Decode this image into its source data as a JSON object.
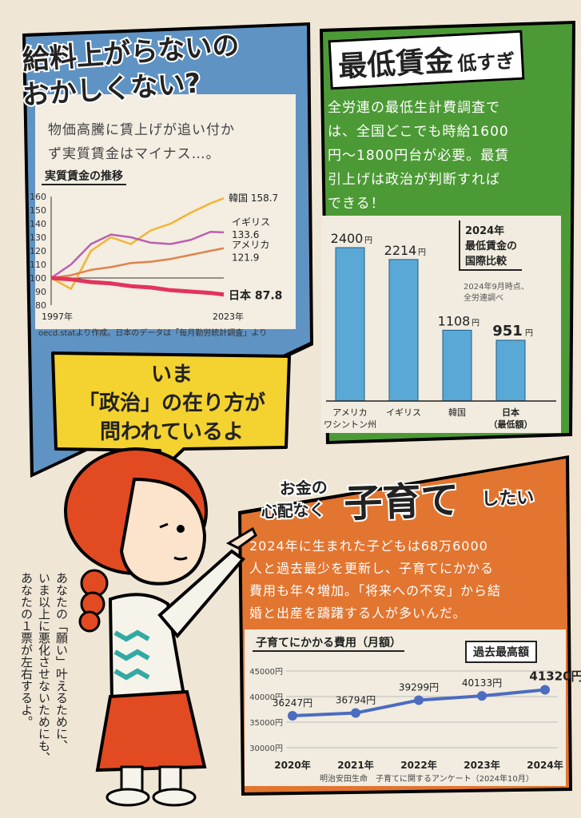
{
  "colors": {
    "blue_panel": "#5f93c4",
    "green_panel": "#4c9a35",
    "orange_panel": "#e27530",
    "yellow_bubble": "#f4d22f",
    "line_korea": "#f2b531",
    "line_uk": "#bb5fb1",
    "line_usa": "#e0824b",
    "line_japan": "#e3335c",
    "bar": "#5aa8d6",
    "cost_line": "#4c6cc0"
  },
  "panel1": {
    "title_line1": "給料上がらないの",
    "title_line2": "おかしくない?",
    "body_line1": "物価高騰に賃上げが追い付か",
    "body_line2": "ず実質賃金はマイナス…。",
    "chart_label": "実質賃金の推移",
    "source": "oecd.statより作成。日本のデータは「毎月勤労統計調査」より"
  },
  "panel2": {
    "title_big": "最低賃金",
    "title_small": "低すぎ",
    "body_line1": "全労連の最低生計費調査で",
    "body_line2": "は、全国どこでも時給1600",
    "body_line3": "円〜1800円台が必要。最賃",
    "body_line4": "引上げは政治が判断すれば",
    "body_line5": "できる！",
    "chart_title_line1": "2024年",
    "chart_title_line2": "最低賃金の",
    "chart_title_line3": "国際比較",
    "chart_note_line1": "2024年9月時点、",
    "chart_note_line2": "全労連調べ"
  },
  "bubble": {
    "line1": "いま",
    "line2": "「政治」の在り方が",
    "line3": "問われているよ"
  },
  "vertical_text": {
    "line1": "あなたの「願い」叶えるために、",
    "line2": "いま以上に悪化させないためにも、",
    "line3": "あなたの１票が左右するよ。"
  },
  "panel3": {
    "title_pre1": "お金の",
    "title_pre2": "心配なく",
    "title_big": "子育て",
    "title_post": "したい",
    "body_line1": "2024年に生まれた子どもは68万6000",
    "body_line2": "人と過去最少を更新し、子育てにかかる",
    "body_line3": "費用も年々増加。「将来への不安」から結",
    "body_line4": "婚と出産を躊躇する人が多いんだ。",
    "chart_label": "子育てにかかる費用（月額）",
    "callout": "過去最高額",
    "source": "明治安田生命　子育てに関するアンケート（2024年10月）"
  },
  "chart_data": [
    {
      "type": "line",
      "title": "実質賃金の推移",
      "x": [
        1997,
        2000,
        2003,
        2006,
        2009,
        2012,
        2015,
        2018,
        2021,
        2023
      ],
      "xlabels": [
        "1997年",
        "2023年"
      ],
      "yticks": [
        80,
        90,
        100,
        110,
        120,
        130,
        140,
        150,
        160
      ],
      "ylim": [
        80,
        160
      ],
      "series": [
        {
          "name": "韓国",
          "values": [
            100,
            92,
            120,
            130,
            125,
            135,
            140,
            148,
            155,
            158.7
          ],
          "end_label": "韓国 158.7"
        },
        {
          "name": "イギリス",
          "values": [
            100,
            110,
            125,
            132,
            130,
            126,
            125,
            128,
            134,
            133.6
          ],
          "end_label_1": "イギリス",
          "end_label_2": "133.6"
        },
        {
          "name": "アメリカ",
          "values": [
            100,
            102,
            106,
            108,
            111,
            112,
            114,
            117,
            120,
            121.9
          ],
          "end_label_1": "アメリカ",
          "end_label_2": "121.9"
        },
        {
          "name": "日本",
          "values": [
            100,
            99,
            97,
            96,
            94,
            93,
            91,
            90,
            89,
            87.8
          ],
          "end_label": "日本 87.8"
        }
      ]
    },
    {
      "type": "bar",
      "title": "2024年 最低賃金の国際比較",
      "categories": [
        "アメリカ ワシントン州",
        "イギリス",
        "韓国",
        "日本 （最低額）"
      ],
      "values": [
        2400,
        2214,
        1108,
        951
      ],
      "value_labels": [
        "2400",
        "2214",
        "1108",
        "951"
      ],
      "unit": "円",
      "cat_line1": [
        "アメリカ",
        "イギリス",
        "韓国",
        "日本"
      ],
      "cat_line2": [
        "ワシントン州",
        "",
        "",
        "（最低額）"
      ]
    },
    {
      "type": "line",
      "title": "子育てにかかる費用（月額）",
      "categories": [
        "2020年",
        "2021年",
        "2022年",
        "2023年",
        "2024年"
      ],
      "values": [
        36247,
        36794,
        39299,
        40133,
        41320
      ],
      "value_labels": [
        "36247円",
        "36794円",
        "39299円",
        "40133円",
        "41320円"
      ],
      "yticks": [
        "45000円",
        "40000円",
        "35000円",
        "30000円"
      ],
      "ylim": [
        30000,
        45000
      ]
    }
  ]
}
